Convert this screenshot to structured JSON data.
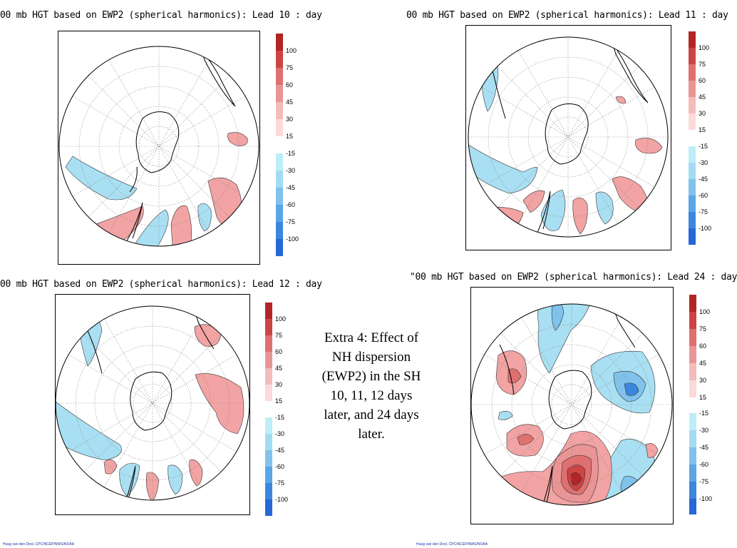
{
  "panels": [
    {
      "title": "00 mb HGT based on  EWP2 (spherical harmonics): Lead 10 : day"
    },
    {
      "title": "00 mb HGT based on  EWP2 (spherical harmonics): Lead 11 : day"
    },
    {
      "title": "00 mb HGT based on  EWP2 (spherical harmonics): Lead 12 : day"
    },
    {
      "title": "\"00 mb HGT based on  EWP2 (spherical harmonics): Lead 24 : day"
    }
  ],
  "colorbar": {
    "positive": [
      "100",
      "75",
      "60",
      "45",
      "30",
      "15"
    ],
    "negative": [
      "-15",
      "-30",
      "-45",
      "-60",
      "-75",
      "-100"
    ],
    "positive_colors": [
      "#b32424",
      "#cc4444",
      "#e07070",
      "#ea9595",
      "#f4bbbb",
      "#fbdada"
    ],
    "negative_colors": [
      "#bdeef8",
      "#a3dcf2",
      "#80c2ec",
      "#5aa6e6",
      "#3b86df",
      "#2568d6"
    ]
  },
  "caption": "Extra 4: Effect of NH dispersion (EWP2) in the SH 10, 11, 12 days later, and 24 days later.",
  "credits": [
    "Huug van den Dool, CPC/NCEP/NWS/NOAA",
    "Huug van den Dool, CPC/NCEP/NWS/NOAA"
  ],
  "colors": {
    "positive_anomaly": "#f2a3a3",
    "negative_anomaly": "#a9dff2",
    "coast": "#000000",
    "grid": "#888888"
  }
}
